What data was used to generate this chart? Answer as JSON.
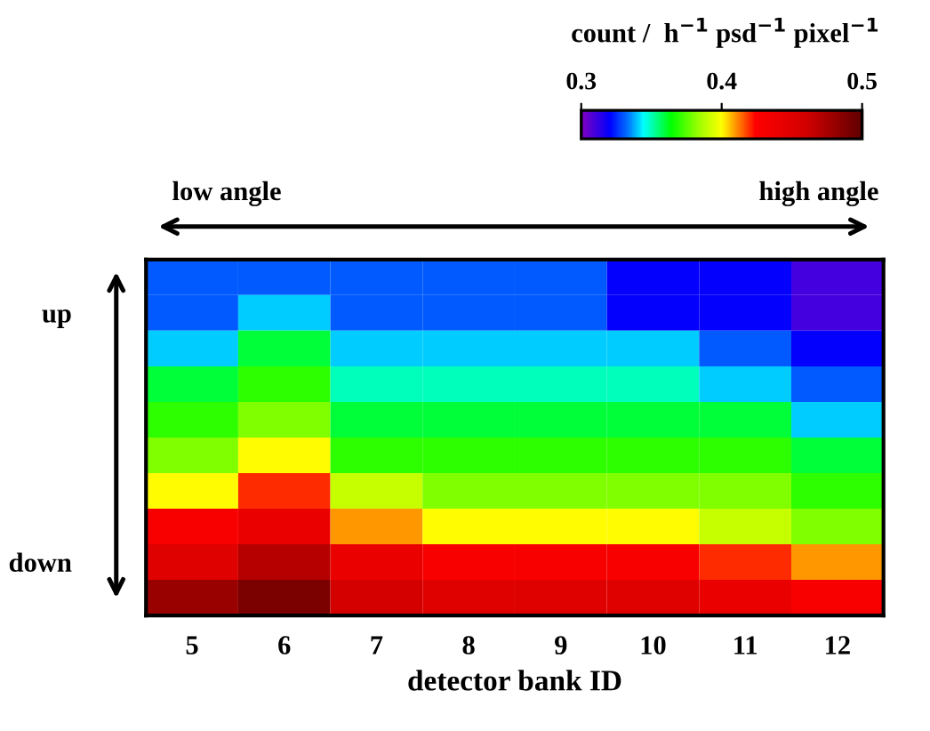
{
  "chart_data": {
    "type": "heatmap",
    "xlabel": "detector bank ID",
    "clabel": "count /  h$^{−1}$ psd$^{−1}$ pixel$^{−1}$",
    "annotations": [
      "low angle",
      "high angle"
    ],
    "categories": [
      "5",
      "6",
      "7",
      "8",
      "9",
      "10",
      "11",
      "12"
    ],
    "y_categories": [
      null,
      "up",
      null,
      null,
      null,
      null,
      null,
      null,
      "down",
      null
    ],
    "cells": [
      [
        0.33,
        0.33,
        0.33,
        0.33,
        0.33,
        0.32,
        0.32,
        0.31
      ],
      [
        0.33,
        0.34,
        0.33,
        0.33,
        0.33,
        0.32,
        0.32,
        0.31
      ],
      [
        0.34,
        0.36,
        0.34,
        0.34,
        0.34,
        0.34,
        0.33,
        0.32
      ],
      [
        0.36,
        0.37,
        0.35,
        0.35,
        0.35,
        0.35,
        0.34,
        0.33
      ],
      [
        0.37,
        0.38,
        0.36,
        0.36,
        0.36,
        0.36,
        0.36,
        0.34
      ],
      [
        0.38,
        0.4,
        0.37,
        0.37,
        0.37,
        0.37,
        0.37,
        0.36
      ],
      [
        0.4,
        0.42,
        0.39,
        0.38,
        0.38,
        0.38,
        0.38,
        0.37
      ],
      [
        0.43,
        0.44,
        0.41,
        0.4,
        0.4,
        0.4,
        0.39,
        0.38
      ],
      [
        0.45,
        0.47,
        0.44,
        0.43,
        0.43,
        0.43,
        0.42,
        0.41
      ],
      [
        0.48,
        0.49,
        0.46,
        0.45,
        0.45,
        0.45,
        0.44,
        0.43
      ]
    ],
    "clim": [
      0.3,
      0.5
    ],
    "cticks": [
      0.3,
      0.4,
      0.5
    ]
  }
}
